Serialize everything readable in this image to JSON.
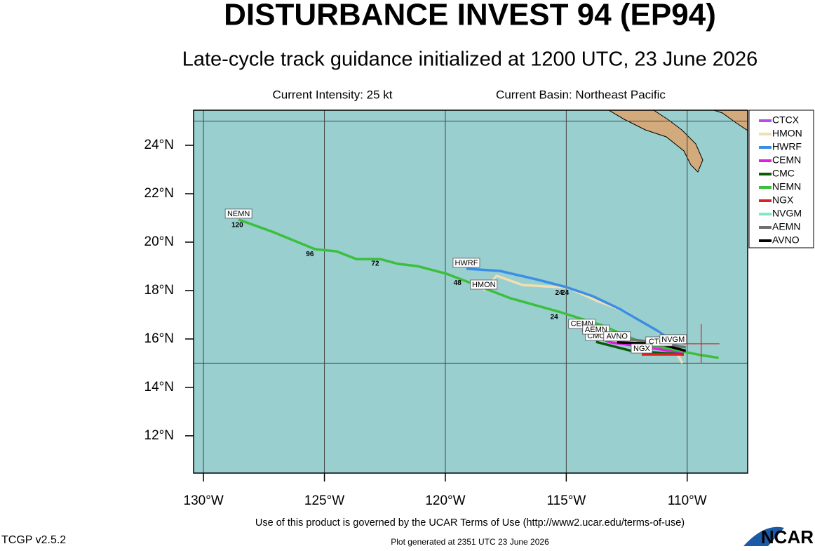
{
  "chart_data": {
    "type": "track",
    "title": "DISTURBANCE INVEST 94 (EP94)",
    "subtitle": "Late-cycle track guidance initialized at 1200 UTC, 23 June 2026",
    "intensity": "Current Intensity: 25 kt",
    "basin": "Current Basin: Northeast Pacific",
    "xlim": [
      -130.41,
      -107.5
    ],
    "ylim": [
      10.46,
      25.45
    ],
    "xticks": [
      {
        "value": -130,
        "label": "130°W"
      },
      {
        "value": -125,
        "label": "125°W"
      },
      {
        "value": -120,
        "label": "120°W"
      },
      {
        "value": -115,
        "label": "115°W"
      },
      {
        "value": -110,
        "label": "110°W"
      }
    ],
    "yticks": [
      {
        "value": 12,
        "label": "12°N"
      },
      {
        "value": 14,
        "label": "14°N"
      },
      {
        "value": 16,
        "label": "16°N"
      },
      {
        "value": 18,
        "label": "18°N"
      },
      {
        "value": 20,
        "label": "20°N"
      },
      {
        "value": 22,
        "label": "22°N"
      },
      {
        "value": 24,
        "label": "24°N"
      }
    ],
    "xgrid": [
      -130,
      -125,
      -120,
      -115,
      -110
    ],
    "ygrid": [
      15,
      25
    ],
    "ocean_color": "#99cfcf",
    "land_color": "#d2aa7c",
    "current_position": {
      "lon": -109.42,
      "lat": 15.8
    },
    "series": [
      {
        "name": "CTCX",
        "color": "#b84ce8",
        "lon": [
          -111.16,
          -110.06
        ],
        "lat": [
          15.65,
          15.51
        ]
      },
      {
        "name": "HMON",
        "color": "#f0dfb0",
        "lon": [
          -118.41,
          -117.88,
          -116.81,
          -115.8,
          -114.93,
          -113.77,
          -112.61,
          -111.3,
          -110.58,
          -110.2
        ],
        "lat": [
          18.0,
          18.61,
          18.23,
          18.17,
          18.12,
          17.59,
          17.16,
          16.38,
          15.65,
          15.01
        ]
      },
      {
        "name": "HWRF",
        "color": "#3a8ee6",
        "lon": [
          -119.13,
          -117.74,
          -116.23,
          -114.99,
          -113.91,
          -112.75,
          -111.3,
          -110.43
        ],
        "lat": [
          18.9,
          18.81,
          18.46,
          18.14,
          17.77,
          17.22,
          16.38,
          15.8
        ]
      },
      {
        "name": "CEMN",
        "color": "#e020e0",
        "lon": [
          -114.35,
          -113.19,
          -111.45,
          -110.14
        ],
        "lat": [
          16.38,
          15.86,
          15.62,
          15.42
        ]
      },
      {
        "name": "CMC",
        "color": "#0a5a0a",
        "lon": [
          -113.77,
          -112.32,
          -110.14
        ],
        "lat": [
          15.88,
          15.51,
          15.36
        ]
      },
      {
        "name": "NEMN",
        "color": "#3cbf3c",
        "lon": [
          -128.55,
          -127.1,
          -125.39,
          -124.49,
          -123.68,
          -122.7,
          -121.94,
          -121.16,
          -119.97,
          -119.42,
          -117.3,
          -115.22,
          -113.57,
          -111.74,
          -109.42,
          -108.7
        ],
        "lat": [
          20.93,
          20.41,
          19.71,
          19.62,
          19.3,
          19.3,
          19.1,
          19.01,
          18.7,
          18.49,
          17.68,
          17.1,
          16.58,
          15.8,
          15.33,
          15.22
        ]
      },
      {
        "name": "NGX",
        "color": "#e02020",
        "lon": [
          -111.88,
          -110.14
        ],
        "lat": [
          15.36,
          15.36
        ]
      },
      {
        "name": "NVGM",
        "color": "#80e8c8",
        "lon": [
          -110.58,
          -110.06
        ],
        "lat": [
          15.74,
          15.57
        ]
      },
      {
        "name": "AEMN",
        "color": "#707070",
        "lon": [
          -113.77,
          -111.45,
          -110.06
        ],
        "lat": [
          16.14,
          15.88,
          15.65
        ]
      },
      {
        "name": "AVNO",
        "color": "#000000",
        "lon": [
          -112.9,
          -111.16,
          -110.06
        ],
        "lat": [
          15.86,
          15.8,
          15.51
        ]
      }
    ],
    "hour_labels": [
      {
        "text": 120,
        "lon": -128.6,
        "lat": 20.7
      },
      {
        "text": 96,
        "lon": -125.6,
        "lat": 19.5
      },
      {
        "text": 72,
        "lon": -122.9,
        "lat": 19.1
      },
      {
        "text": 48,
        "lon": -119.5,
        "lat": 18.3
      },
      {
        "text": 24,
        "lon": -115.3,
        "lat": 17.9
      },
      {
        "text": 24,
        "lon": -115.05,
        "lat": 17.9
      },
      {
        "text": 24,
        "lon": -115.5,
        "lat": 16.9
      }
    ],
    "terms": "Use of this product is governed by the UCAR Terms of Use (http://www2.ucar.edu/terms-of-use)",
    "version": "TCGP v2.5.2",
    "generated": "Plot generated at 2351 UTC   23 June 2026",
    "logo": "NCAR"
  }
}
